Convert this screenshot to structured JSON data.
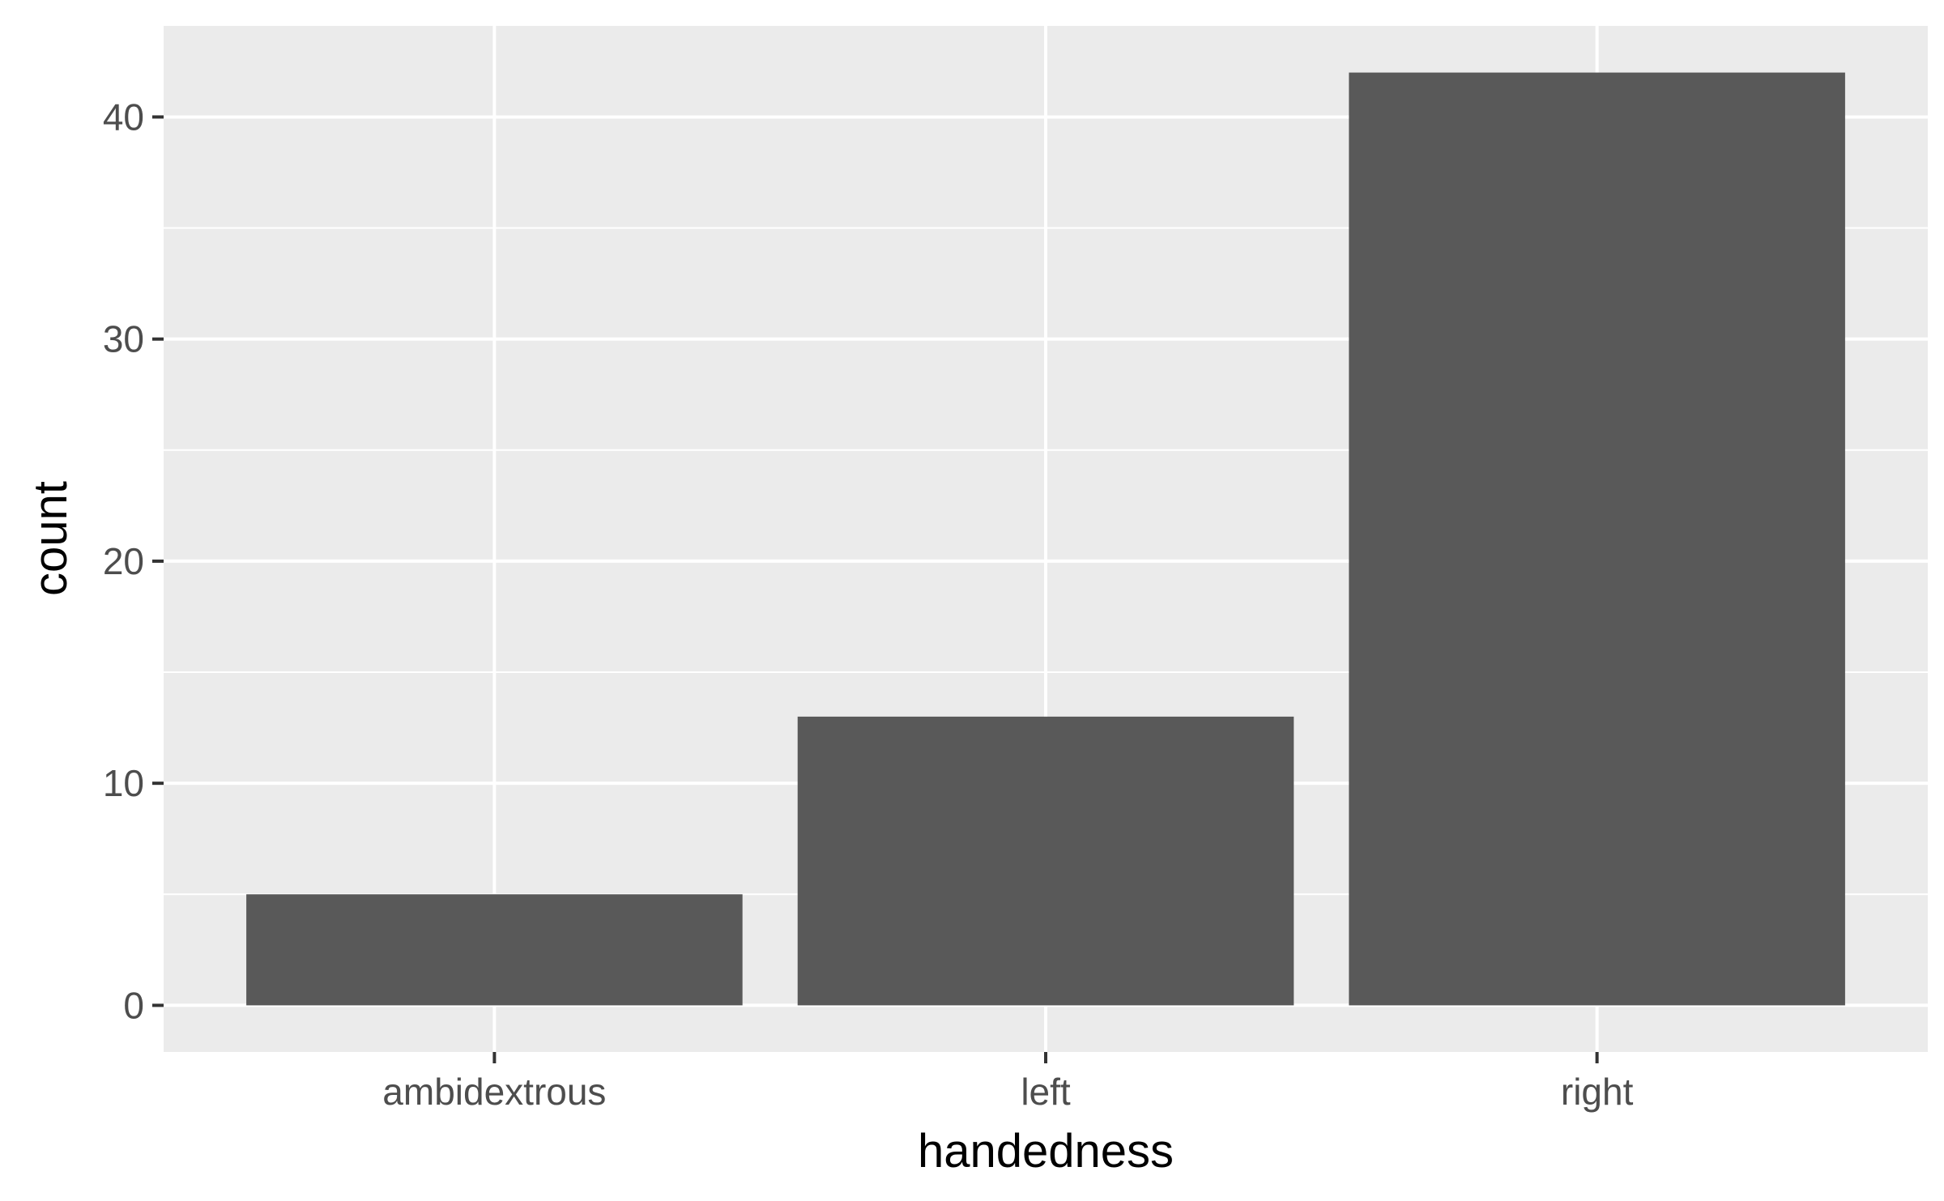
{
  "chart_data": {
    "type": "bar",
    "categories": [
      "ambidextrous",
      "left",
      "right"
    ],
    "values": [
      5,
      13,
      42
    ],
    "xlabel": "handedness",
    "ylabel": "count",
    "ylim": [
      -2.1,
      44.1
    ],
    "yticks": [
      0,
      10,
      20,
      30,
      40
    ],
    "grid": true,
    "legend": "none",
    "colors": {
      "panel": "#ebebeb",
      "bar": "#595959",
      "grid": "#ffffff",
      "tick": "#333333"
    }
  }
}
